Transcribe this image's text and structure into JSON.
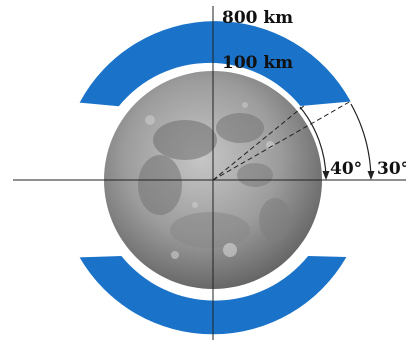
{
  "labels": {
    "outer_altitude": "800 km",
    "inner_altitude": "100 km",
    "angle_inner": "40°",
    "angle_outer": "30°"
  },
  "colors": {
    "band": "#1a73c9",
    "axis": "#222222",
    "moon_light": "#b3b3b3",
    "moon_dark": "#5b5b5b"
  },
  "icons": [
    "moon-image"
  ]
}
